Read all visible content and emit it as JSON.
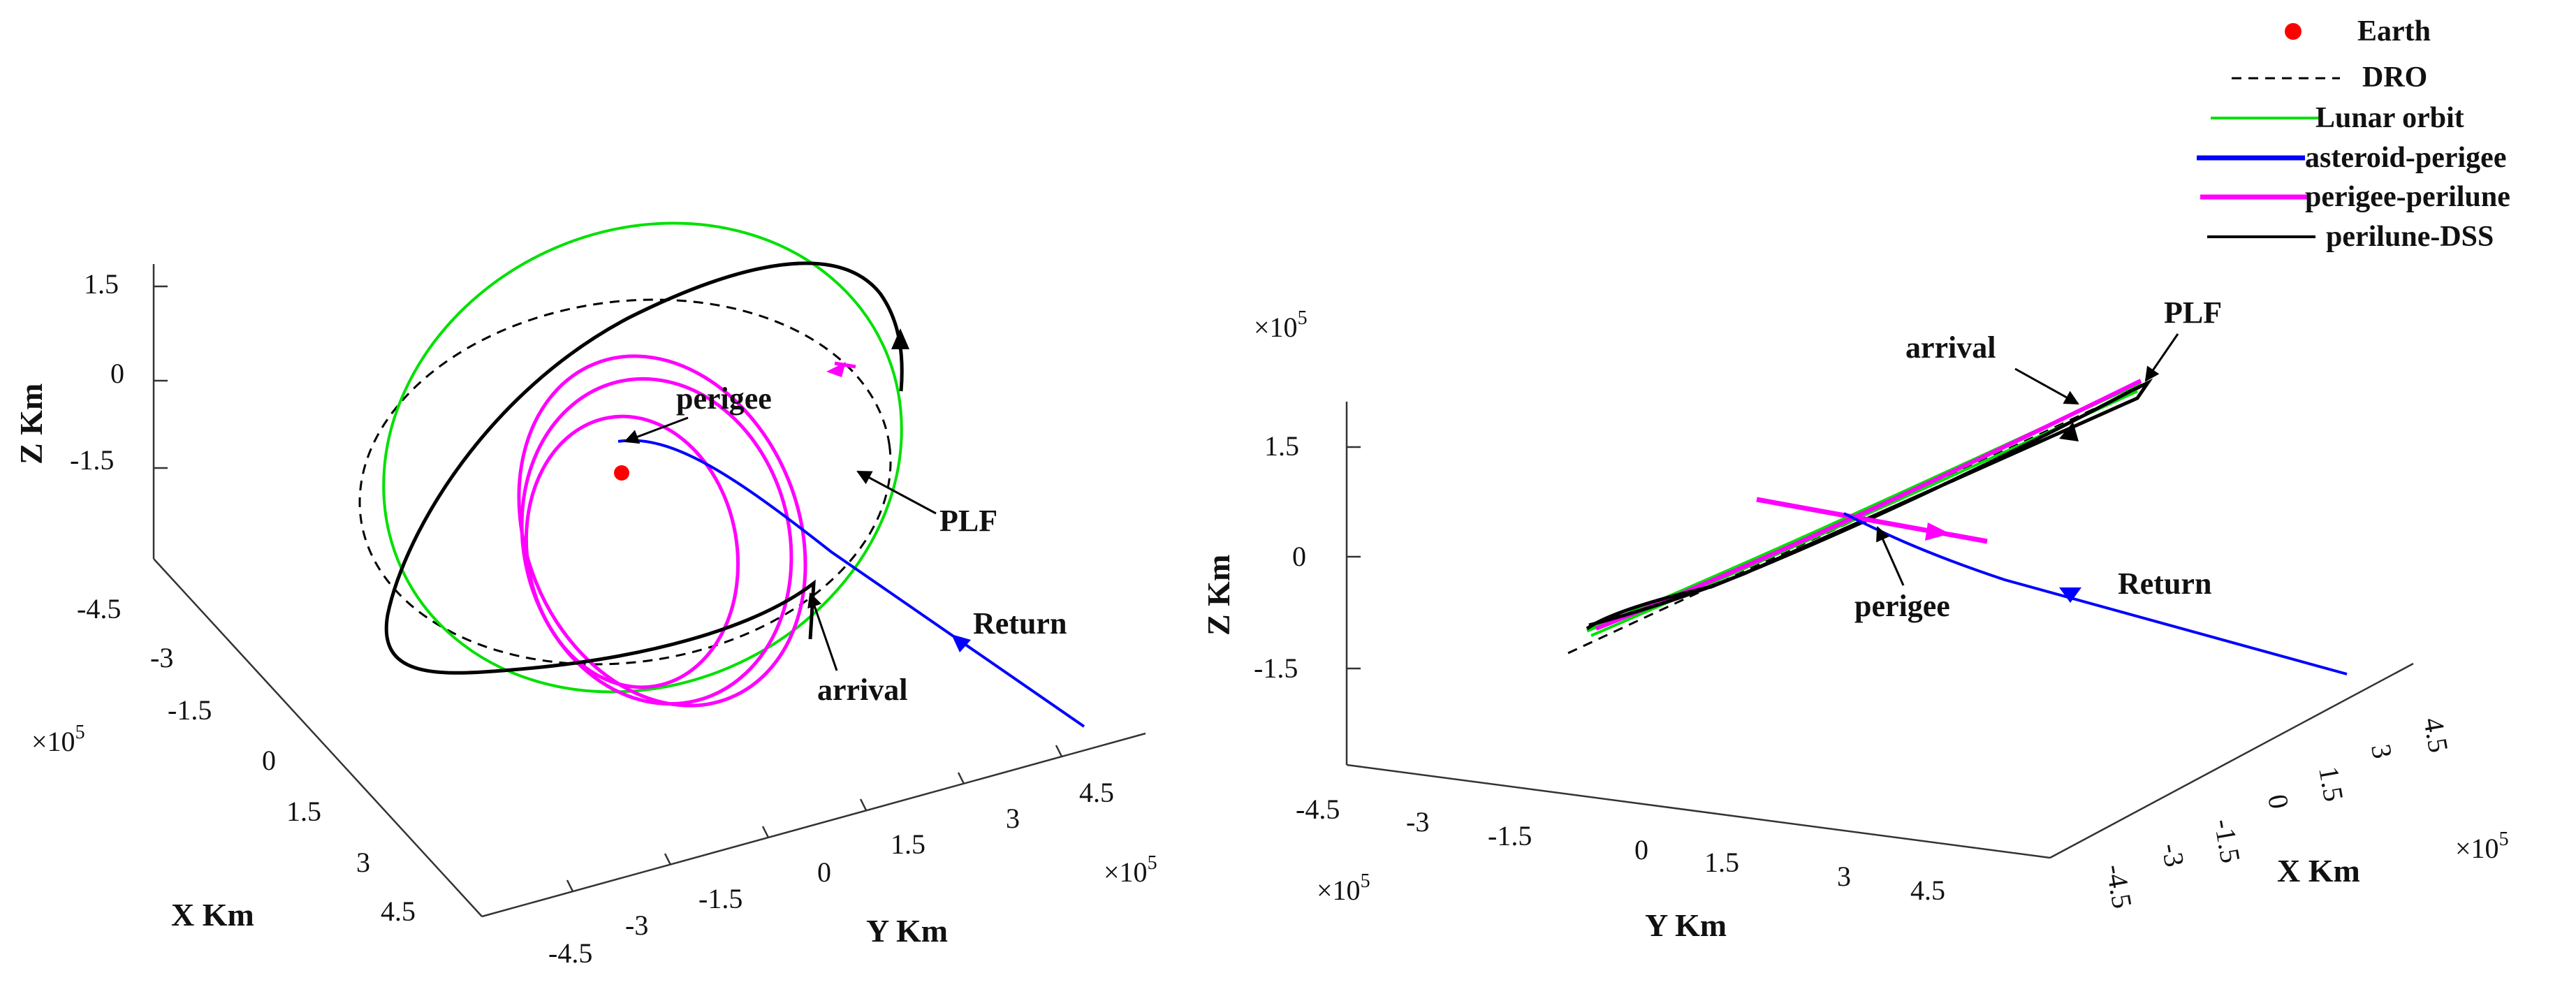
{
  "legend": [
    {
      "label": "Earth",
      "color": "#ff0000",
      "style": "marker"
    },
    {
      "label": "DRO",
      "color": "#000000",
      "style": "dashed"
    },
    {
      "label": "Lunar orbit",
      "color": "#00e000",
      "style": "solid"
    },
    {
      "label": "asteroid-perigee",
      "color": "#0000ff",
      "style": "solid-thick"
    },
    {
      "label": "perigee-perilune",
      "color": "#ff00ff",
      "style": "solid-thick"
    },
    {
      "label": "perilune-DSS",
      "color": "#000000",
      "style": "solid"
    }
  ],
  "chart_data": [
    {
      "type": "line3d",
      "view": "oblique",
      "xlabel": "X Km",
      "ylabel": "Y Km",
      "zlabel": "Z Km",
      "x_ticks": [
        "-4.5",
        "-3",
        "-1.5",
        "0",
        "1.5",
        "3",
        "4.5"
      ],
      "y_ticks": [
        "-4.5",
        "-3",
        "-1.5",
        "0",
        "1.5",
        "3",
        "4.5"
      ],
      "z_ticks": [
        "1.5",
        "0",
        "-1.5"
      ],
      "x_exponent": "×10",
      "x_exponent_power": "5",
      "y_exponent": "×10",
      "y_exponent_power": "5",
      "annotations": [
        "perigee",
        "PLF",
        "Return",
        "arrival"
      ],
      "series": [
        "Earth",
        "DRO",
        "Lunar orbit",
        "asteroid-perigee",
        "perigee-perilune",
        "perilune-DSS"
      ]
    },
    {
      "type": "line3d",
      "view": "edge-on",
      "xlabel": "X Km",
      "ylabel": "Y Km",
      "zlabel": "Z Km",
      "y_ticks": [
        "-4.5",
        "-3",
        "-1.5",
        "0",
        "1.5",
        "3",
        "4.5"
      ],
      "x_ticks": [
        "4.5",
        "3",
        "1.5",
        "0",
        "-1.5",
        "-3",
        "-4.5"
      ],
      "z_ticks": [
        "1.5",
        "0",
        "-1.5"
      ],
      "z_exponent": "×10",
      "z_exponent_power": "5",
      "y_exponent": "×10",
      "y_exponent_power": "5",
      "x_exponent": "×10",
      "x_exponent_power": "5",
      "annotations": [
        "arrival",
        "PLF",
        "perigee",
        "Return"
      ],
      "series": [
        "DRO",
        "Lunar orbit",
        "asteroid-perigee",
        "perigee-perilune",
        "perilune-DSS"
      ]
    }
  ]
}
